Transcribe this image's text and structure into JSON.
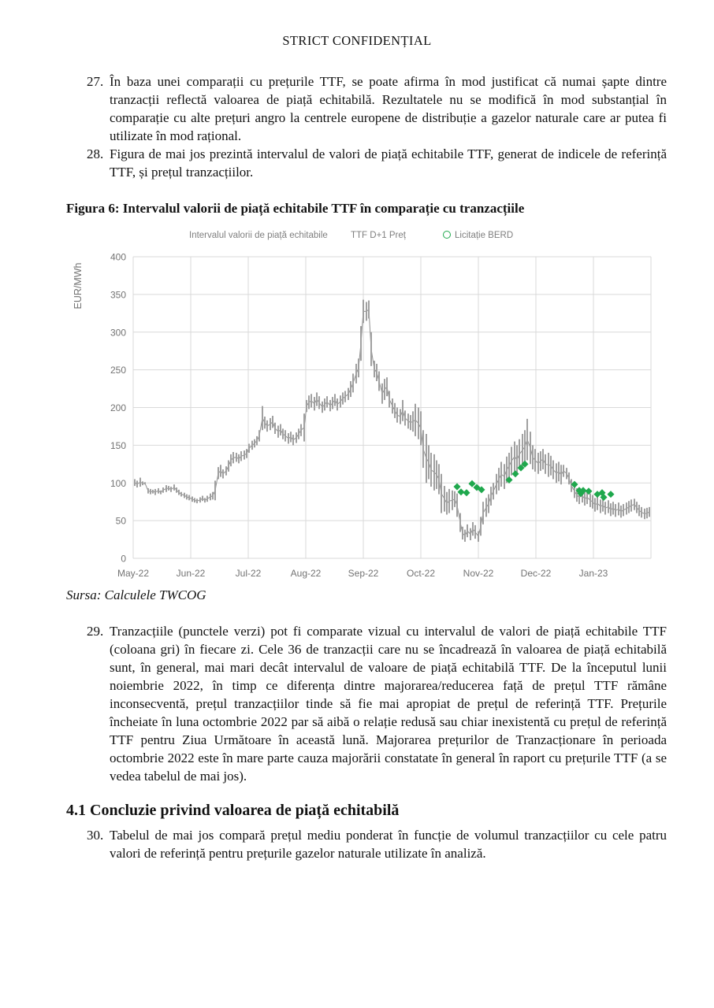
{
  "header": {
    "classification": "STRICT CONFIDENȚIAL"
  },
  "paragraphs": [
    {
      "num": "27.",
      "text": "În baza unei comparații cu prețurile TTF, se poate afirma în mod justificat că numai șapte dintre tranzacții reflectă valoarea de piață echitabilă. Rezultatele nu se modifică în mod substanțial în comparație cu alte prețuri angro la centrele europene de distribuție a gazelor naturale care ar putea fi utilizate în mod rațional."
    },
    {
      "num": "28.",
      "text": "Figura de mai jos prezintă intervalul de valori de piață echitabile TTF, generat de indicele de referință TTF, și prețul tranzacțiilor."
    }
  ],
  "figure": {
    "caption": "Figura 6: Intervalul valorii de piață echitabile TTF în comparație cu tranzacțiile",
    "source": "Sursa: Calculele TWCOG"
  },
  "chart_data": {
    "type": "bar",
    "subtype": "daily floating low-high range bars with scatter overlay",
    "title": "",
    "xlabel": "",
    "ylabel": "EUR/MWh",
    "ylim": [
      0,
      400
    ],
    "yticks": [
      0,
      50,
      100,
      150,
      200,
      250,
      300,
      350,
      400
    ],
    "x_categories": [
      "May-22",
      "Jun-22",
      "Jul-22",
      "Aug-22",
      "Sep-22",
      "Oct-22",
      "Nov-22",
      "Dec-22",
      "Jan-23"
    ],
    "x_units": "plot units 0-657; month gridlines every 73 units starting at May-22 = 0",
    "grid": true,
    "legend": [
      {
        "label": "Intervalul valorii de piață echitabile",
        "marker": "none",
        "color": "#a0a0a0"
      },
      {
        "label": "TTF D+1 Preț",
        "marker": "none",
        "color": "#8f8f8f"
      },
      {
        "label": "Licitație BERD",
        "marker": "circle",
        "color": "#1fa84d"
      }
    ],
    "series": [
      {
        "name": "Intervalul valorii de piață echitabile",
        "type": "range-bar",
        "color": "#a0a0a0",
        "points": [
          [
            2,
            96,
            105
          ],
          [
            5,
            94,
            103
          ],
          [
            9,
            95,
            107
          ],
          [
            12,
            97,
            102
          ],
          [
            15,
            98,
            101
          ],
          [
            19,
            86,
            93
          ],
          [
            22,
            85,
            92
          ],
          [
            25,
            86,
            91
          ],
          [
            28,
            84,
            92
          ],
          [
            32,
            86,
            93
          ],
          [
            35,
            85,
            90
          ],
          [
            38,
            87,
            94
          ],
          [
            42,
            88,
            97
          ],
          [
            45,
            90,
            96
          ],
          [
            48,
            88,
            95
          ],
          [
            52,
            90,
            98
          ],
          [
            55,
            87,
            94
          ],
          [
            58,
            84,
            91
          ],
          [
            61,
            82,
            88
          ],
          [
            65,
            80,
            87
          ],
          [
            68,
            78,
            85
          ],
          [
            71,
            77,
            84
          ],
          [
            75,
            75,
            82
          ],
          [
            78,
            74,
            80
          ],
          [
            81,
            73,
            79
          ],
          [
            85,
            74,
            81
          ],
          [
            88,
            76,
            83
          ],
          [
            91,
            74,
            80
          ],
          [
            94,
            75,
            83
          ],
          [
            98,
            77,
            86
          ],
          [
            101,
            78,
            88
          ],
          [
            104,
            77,
            103
          ],
          [
            108,
            105,
            121
          ],
          [
            111,
            108,
            124
          ],
          [
            114,
            106,
            118
          ],
          [
            118,
            110,
            122
          ],
          [
            121,
            115,
            130
          ],
          [
            124,
            122,
            138
          ],
          [
            127,
            126,
            141
          ],
          [
            131,
            128,
            140
          ],
          [
            134,
            126,
            138
          ],
          [
            137,
            129,
            142
          ],
          [
            141,
            131,
            143
          ],
          [
            144,
            133,
            145
          ],
          [
            147,
            140,
            152
          ],
          [
            151,
            144,
            156
          ],
          [
            154,
            147,
            158
          ],
          [
            157,
            150,
            162
          ],
          [
            160,
            155,
            170
          ],
          [
            164,
            170,
            202
          ],
          [
            167,
            172,
            188
          ],
          [
            170,
            168,
            183
          ],
          [
            174,
            170,
            186
          ],
          [
            177,
            173,
            189
          ],
          [
            180,
            165,
            180
          ],
          [
            184,
            160,
            176
          ],
          [
            187,
            163,
            178
          ],
          [
            190,
            158,
            172
          ],
          [
            193,
            155,
            170
          ],
          [
            197,
            152,
            166
          ],
          [
            200,
            154,
            168
          ],
          [
            203,
            150,
            164
          ],
          [
            207,
            153,
            167
          ],
          [
            210,
            158,
            172
          ],
          [
            213,
            162,
            178
          ],
          [
            217,
            155,
            192
          ],
          [
            220,
            194,
            210
          ],
          [
            223,
            198,
            216
          ],
          [
            226,
            200,
            218
          ],
          [
            230,
            196,
            214
          ],
          [
            233,
            202,
            220
          ],
          [
            236,
            198,
            215
          ],
          [
            240,
            193,
            208
          ],
          [
            243,
            196,
            212
          ],
          [
            246,
            200,
            215
          ],
          [
            250,
            195,
            210
          ],
          [
            253,
            198,
            214
          ],
          [
            256,
            202,
            218
          ],
          [
            259,
            196,
            212
          ],
          [
            263,
            200,
            216
          ],
          [
            266,
            204,
            220
          ],
          [
            269,
            207,
            222
          ],
          [
            273,
            210,
            226
          ],
          [
            276,
            214,
            235
          ],
          [
            279,
            220,
            245
          ],
          [
            283,
            232,
            258
          ],
          [
            286,
            240,
            265
          ],
          [
            289,
            262,
            308
          ],
          [
            292,
            312,
            343
          ],
          [
            296,
            315,
            340
          ],
          [
            299,
            318,
            342
          ],
          [
            302,
            255,
            300
          ],
          [
            306,
            240,
            262
          ],
          [
            309,
            235,
            258
          ],
          [
            312,
            222,
            248
          ],
          [
            316,
            205,
            232
          ],
          [
            319,
            210,
            238
          ],
          [
            322,
            215,
            240
          ],
          [
            325,
            200,
            222
          ],
          [
            329,
            192,
            212
          ],
          [
            332,
            186,
            206
          ],
          [
            335,
            180,
            200
          ],
          [
            339,
            178,
            198
          ],
          [
            342,
            182,
            210
          ],
          [
            345,
            176,
            196
          ],
          [
            349,
            172,
            192
          ],
          [
            352,
            170,
            190
          ],
          [
            355,
            168,
            195
          ],
          [
            358,
            162,
            205
          ],
          [
            362,
            158,
            200
          ],
          [
            365,
            150,
            195
          ],
          [
            368,
            120,
            170
          ],
          [
            372,
            100,
            165
          ],
          [
            375,
            105,
            150
          ],
          [
            378,
            95,
            140
          ],
          [
            382,
            90,
            138
          ],
          [
            385,
            92,
            130
          ],
          [
            388,
            85,
            125
          ],
          [
            391,
            60,
            112
          ],
          [
            395,
            62,
            96
          ],
          [
            398,
            58,
            88
          ],
          [
            401,
            60,
            92
          ],
          [
            405,
            64,
            90
          ],
          [
            408,
            68,
            89
          ],
          [
            411,
            55,
            86
          ],
          [
            415,
            35,
            60
          ],
          [
            418,
            25,
            42
          ],
          [
            421,
            22,
            38
          ],
          [
            424,
            28,
            45
          ],
          [
            428,
            24,
            40
          ],
          [
            431,
            30,
            48
          ],
          [
            434,
            26,
            44
          ],
          [
            438,
            22,
            36
          ],
          [
            441,
            30,
            55
          ],
          [
            444,
            45,
            75
          ],
          [
            448,
            55,
            80
          ],
          [
            451,
            60,
            85
          ],
          [
            454,
            70,
            95
          ],
          [
            457,
            78,
            100
          ],
          [
            461,
            85,
            112
          ],
          [
            464,
            90,
            120
          ],
          [
            467,
            95,
            128
          ],
          [
            471,
            92,
            125
          ],
          [
            474,
            100,
            135
          ],
          [
            477,
            105,
            140
          ],
          [
            480,
            110,
            148
          ],
          [
            484,
            115,
            155
          ],
          [
            487,
            112,
            150
          ],
          [
            490,
            118,
            158
          ],
          [
            494,
            122,
            165
          ],
          [
            497,
            126,
            170
          ],
          [
            500,
            130,
            185
          ],
          [
            504,
            125,
            168
          ],
          [
            507,
            118,
            150
          ],
          [
            510,
            115,
            145
          ],
          [
            514,
            112,
            140
          ],
          [
            517,
            116,
            142
          ],
          [
            520,
            118,
            145
          ],
          [
            523,
            112,
            138
          ],
          [
            527,
            108,
            140
          ],
          [
            530,
            110,
            136
          ],
          [
            533,
            105,
            130
          ],
          [
            537,
            100,
            126
          ],
          [
            540,
            102,
            128
          ],
          [
            543,
            98,
            124
          ],
          [
            546,
            108,
            124
          ],
          [
            550,
            105,
            120
          ],
          [
            553,
            98,
            114
          ],
          [
            556,
            88,
            105
          ],
          [
            560,
            80,
            98
          ],
          [
            563,
            75,
            93
          ],
          [
            566,
            72,
            90
          ],
          [
            570,
            74,
            92
          ],
          [
            573,
            70,
            88
          ],
          [
            576,
            72,
            90
          ],
          [
            580,
            68,
            86
          ],
          [
            583,
            66,
            84
          ],
          [
            586,
            62,
            80
          ],
          [
            589,
            64,
            82
          ],
          [
            593,
            60,
            78
          ],
          [
            596,
            62,
            79
          ],
          [
            599,
            58,
            75
          ],
          [
            603,
            60,
            77
          ],
          [
            606,
            56,
            73
          ],
          [
            609,
            58,
            75
          ],
          [
            612,
            55,
            72
          ],
          [
            616,
            57,
            74
          ],
          [
            619,
            54,
            70
          ],
          [
            622,
            56,
            72
          ],
          [
            626,
            58,
            74
          ],
          [
            629,
            60,
            76
          ],
          [
            632,
            62,
            78
          ],
          [
            636,
            64,
            79
          ],
          [
            639,
            60,
            75
          ],
          [
            642,
            56,
            71
          ],
          [
            645,
            54,
            68
          ],
          [
            649,
            52,
            66
          ],
          [
            652,
            53,
            67
          ],
          [
            655,
            55,
            68
          ]
        ]
      },
      {
        "name": "TTF D+1 Preț",
        "type": "line",
        "color": "#8f8f8f",
        "note": "thin line through the middle of each daily range, mostly hidden behind the gray bars"
      },
      {
        "name": "Licitație BERD",
        "type": "scatter",
        "marker": "diamond",
        "color": "#1fa84d",
        "points": [
          [
            411,
            95
          ],
          [
            416,
            88
          ],
          [
            423,
            87
          ],
          [
            430,
            99
          ],
          [
            436,
            94
          ],
          [
            442,
            91
          ],
          [
            477,
            104
          ],
          [
            485,
            112
          ],
          [
            492,
            120
          ],
          [
            497,
            125
          ],
          [
            560,
            98
          ],
          [
            566,
            90
          ],
          [
            568,
            86
          ],
          [
            571,
            90
          ],
          [
            578,
            89
          ],
          [
            589,
            85
          ],
          [
            595,
            87
          ],
          [
            597,
            81
          ],
          [
            606,
            85
          ]
        ]
      }
    ]
  },
  "paragraph_29": {
    "num": "29.",
    "text": "Tranzacțiile (punctele verzi) pot fi comparate vizual cu intervalul de valori de piață echitabile TTF (coloana gri) în fiecare zi. Cele 36 de tranzacții care nu se încadrează în valoarea de piață echitabilă sunt, în general, mai mari decât intervalul de valoare de piață echitabilă TTF. De la începutul lunii noiembrie 2022, în timp ce diferența dintre majorarea/reducerea față de prețul TTF rămâne inconsecventă, prețul tranzacțiilor tinde să fie mai apropiat de prețul de referință TTF. Prețurile încheiate în luna octombrie 2022 par să aibă o relație redusă sau chiar inexistentă cu prețul de referință TTF pentru Ziua Următoare în această lună. Majorarea prețurilor de Tranzacționare în perioada octombrie 2022 este în mare parte cauza majorării constatate în general în raport cu prețurile TTF (a se vedea tabelul de mai jos)."
  },
  "section": {
    "heading": "4.1 Concluzie privind valoarea de piață echitabilă"
  },
  "paragraph_30": {
    "num": "30.",
    "text": "Tabelul de mai jos compară prețul mediu ponderat în funcție de volumul tranzacțiilor cu cele patru valori de referință pentru prețurile gazelor naturale utilizate în analiză."
  }
}
